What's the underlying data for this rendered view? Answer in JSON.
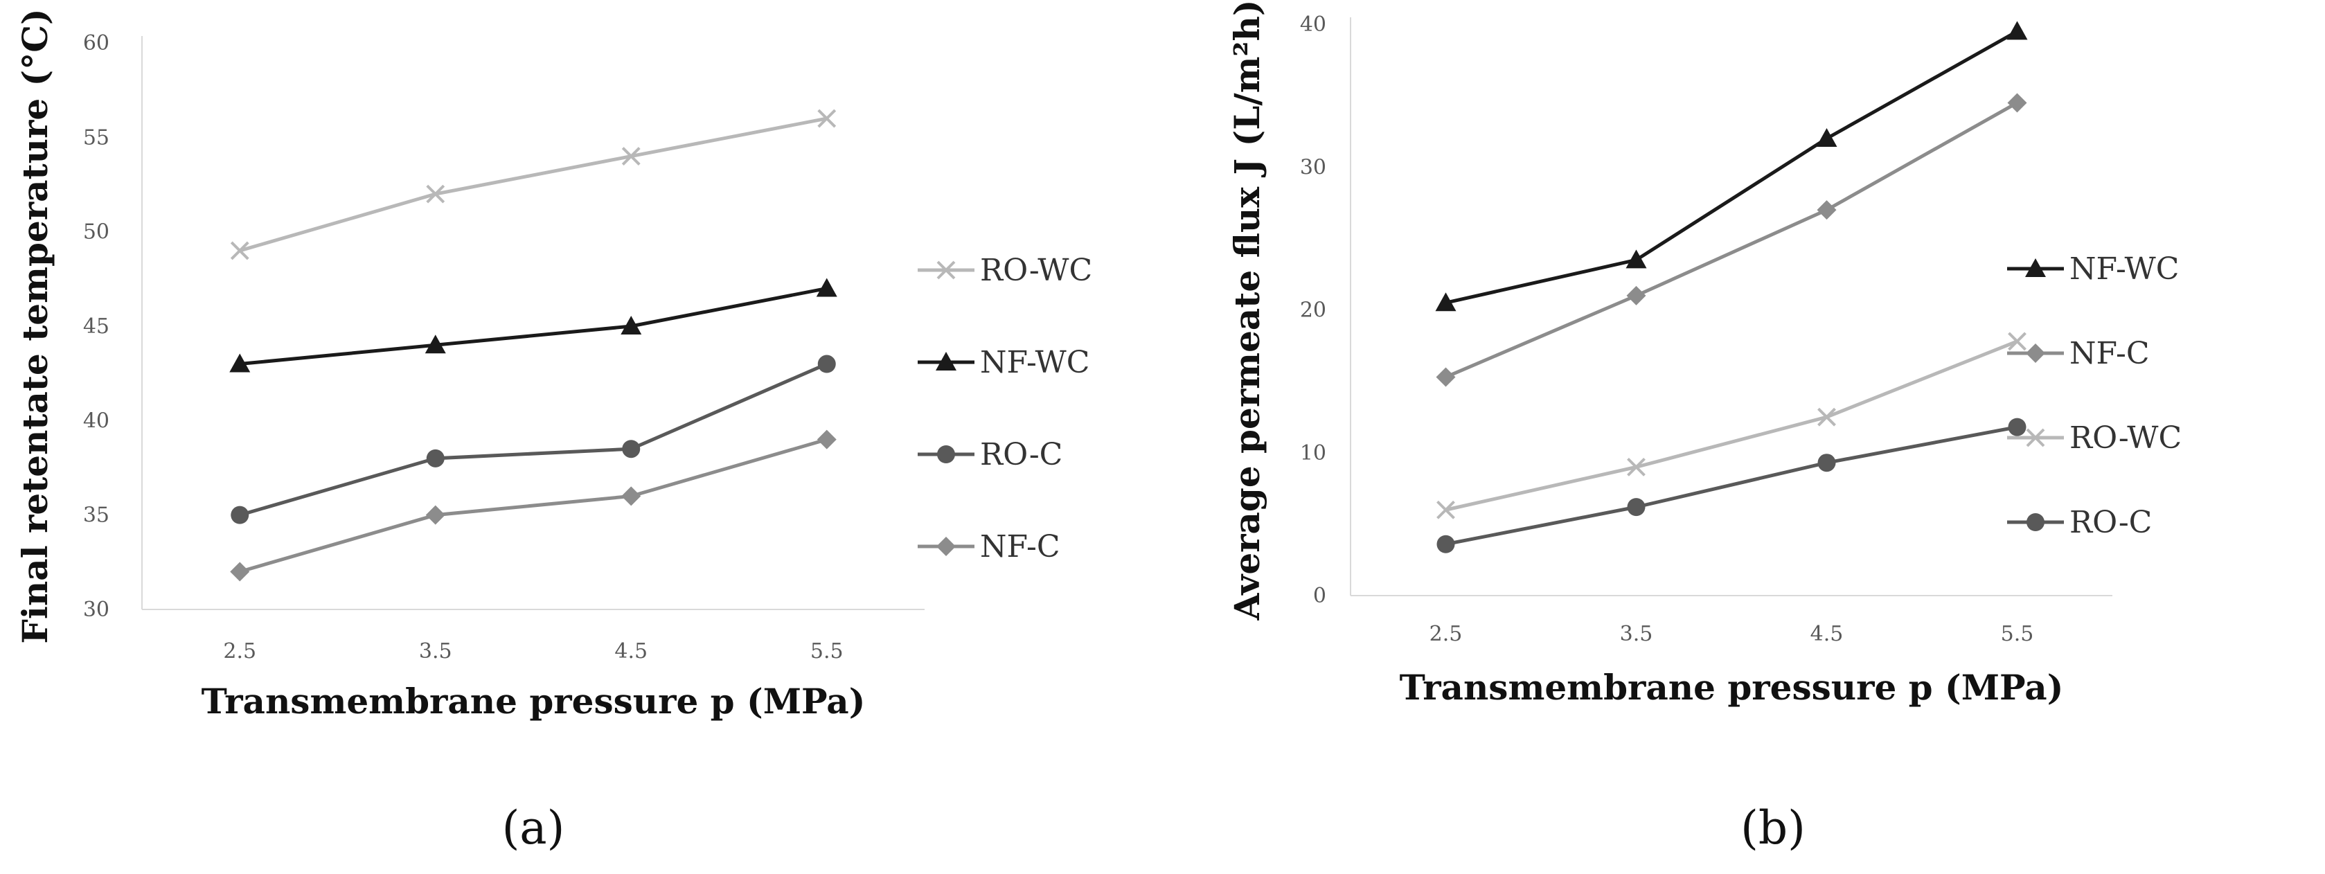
{
  "chart_data": [
    {
      "id": "a",
      "type": "line",
      "panel_label": "(a)",
      "xlabel": "Transmembrane pressure p (MPa)",
      "ylabel": "Final retentate temperature (°C)",
      "categories": [
        "2.5",
        "3.5",
        "4.5",
        "5.5"
      ],
      "ylim": [
        30,
        60
      ],
      "yticks": [
        30,
        35,
        40,
        45,
        50,
        55,
        60
      ],
      "legend_position": "right",
      "series": [
        {
          "name": "RO-WC",
          "values": [
            49,
            52,
            54,
            56
          ],
          "color": "#b8b8b8",
          "marker": "x"
        },
        {
          "name": "NF-WC",
          "values": [
            43,
            44,
            45,
            47
          ],
          "color": "#1a1a1a",
          "marker": "triangle"
        },
        {
          "name": "RO-C",
          "values": [
            35,
            38,
            38.5,
            43
          ],
          "color": "#595959",
          "marker": "circle"
        },
        {
          "name": "NF-C",
          "values": [
            32,
            35,
            36,
            39
          ],
          "color": "#8c8c8c",
          "marker": "diamond"
        }
      ]
    },
    {
      "id": "b",
      "type": "line",
      "panel_label": "(b)",
      "xlabel": "Transmembrane pressure p (MPa)",
      "ylabel": "Average permeate flux J (L/m²h)",
      "categories": [
        "2.5",
        "3.5",
        "4.5",
        "5.5"
      ],
      "ylim": [
        0,
        40
      ],
      "yticks": [
        0,
        10,
        20,
        30,
        40
      ],
      "legend_position": "right",
      "series": [
        {
          "name": "NF-WC",
          "values": [
            20.5,
            23.5,
            32,
            39.5
          ],
          "color": "#1a1a1a",
          "marker": "triangle"
        },
        {
          "name": "NF-C",
          "values": [
            15.3,
            21,
            27,
            34.5
          ],
          "color": "#8c8c8c",
          "marker": "diamond"
        },
        {
          "name": "RO-WC",
          "values": [
            6,
            9,
            12.5,
            17.8
          ],
          "color": "#b8b8b8",
          "marker": "x"
        },
        {
          "name": "RO-C",
          "values": [
            3.6,
            6.2,
            9.3,
            11.8
          ],
          "color": "#595959",
          "marker": "circle"
        }
      ]
    }
  ]
}
